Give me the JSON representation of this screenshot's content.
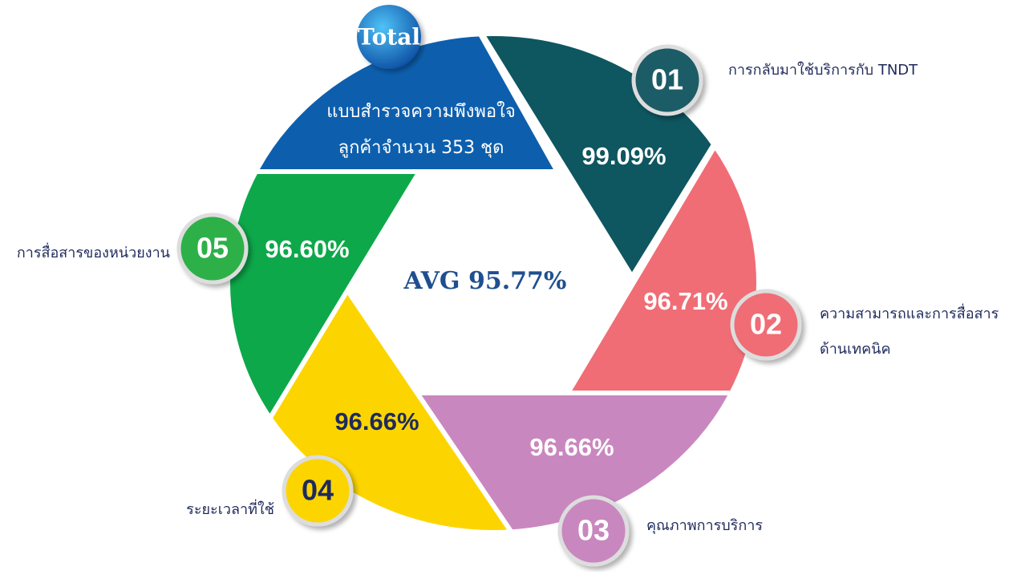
{
  "center": "AVG 95.77%",
  "total": {
    "badge": "Total",
    "lines": [
      "แบบสำรวจความพึงพอใจ",
      "ลูกค้าจำนวน 353 ชุด"
    ]
  },
  "items": [
    {
      "number": "01",
      "label_lines": [
        "การกลับมาใช้บริการกับ TNDT"
      ],
      "percent": "99.09%"
    },
    {
      "number": "02",
      "label_lines": [
        "ความสามารถและการสื่อสาร",
        "ด้านเทคนิค"
      ],
      "percent": "96.71%"
    },
    {
      "number": "03",
      "label_lines": [
        "คุณภาพการบริการ"
      ],
      "percent": "96.66%"
    },
    {
      "number": "04",
      "label_lines": [
        "ระยะเวลาที่ใช้"
      ],
      "percent": "96.66%"
    },
    {
      "number": "05",
      "label_lines": [
        "การสื่อสารของหน่วยงาน"
      ],
      "percent": "96.60%"
    }
  ]
}
